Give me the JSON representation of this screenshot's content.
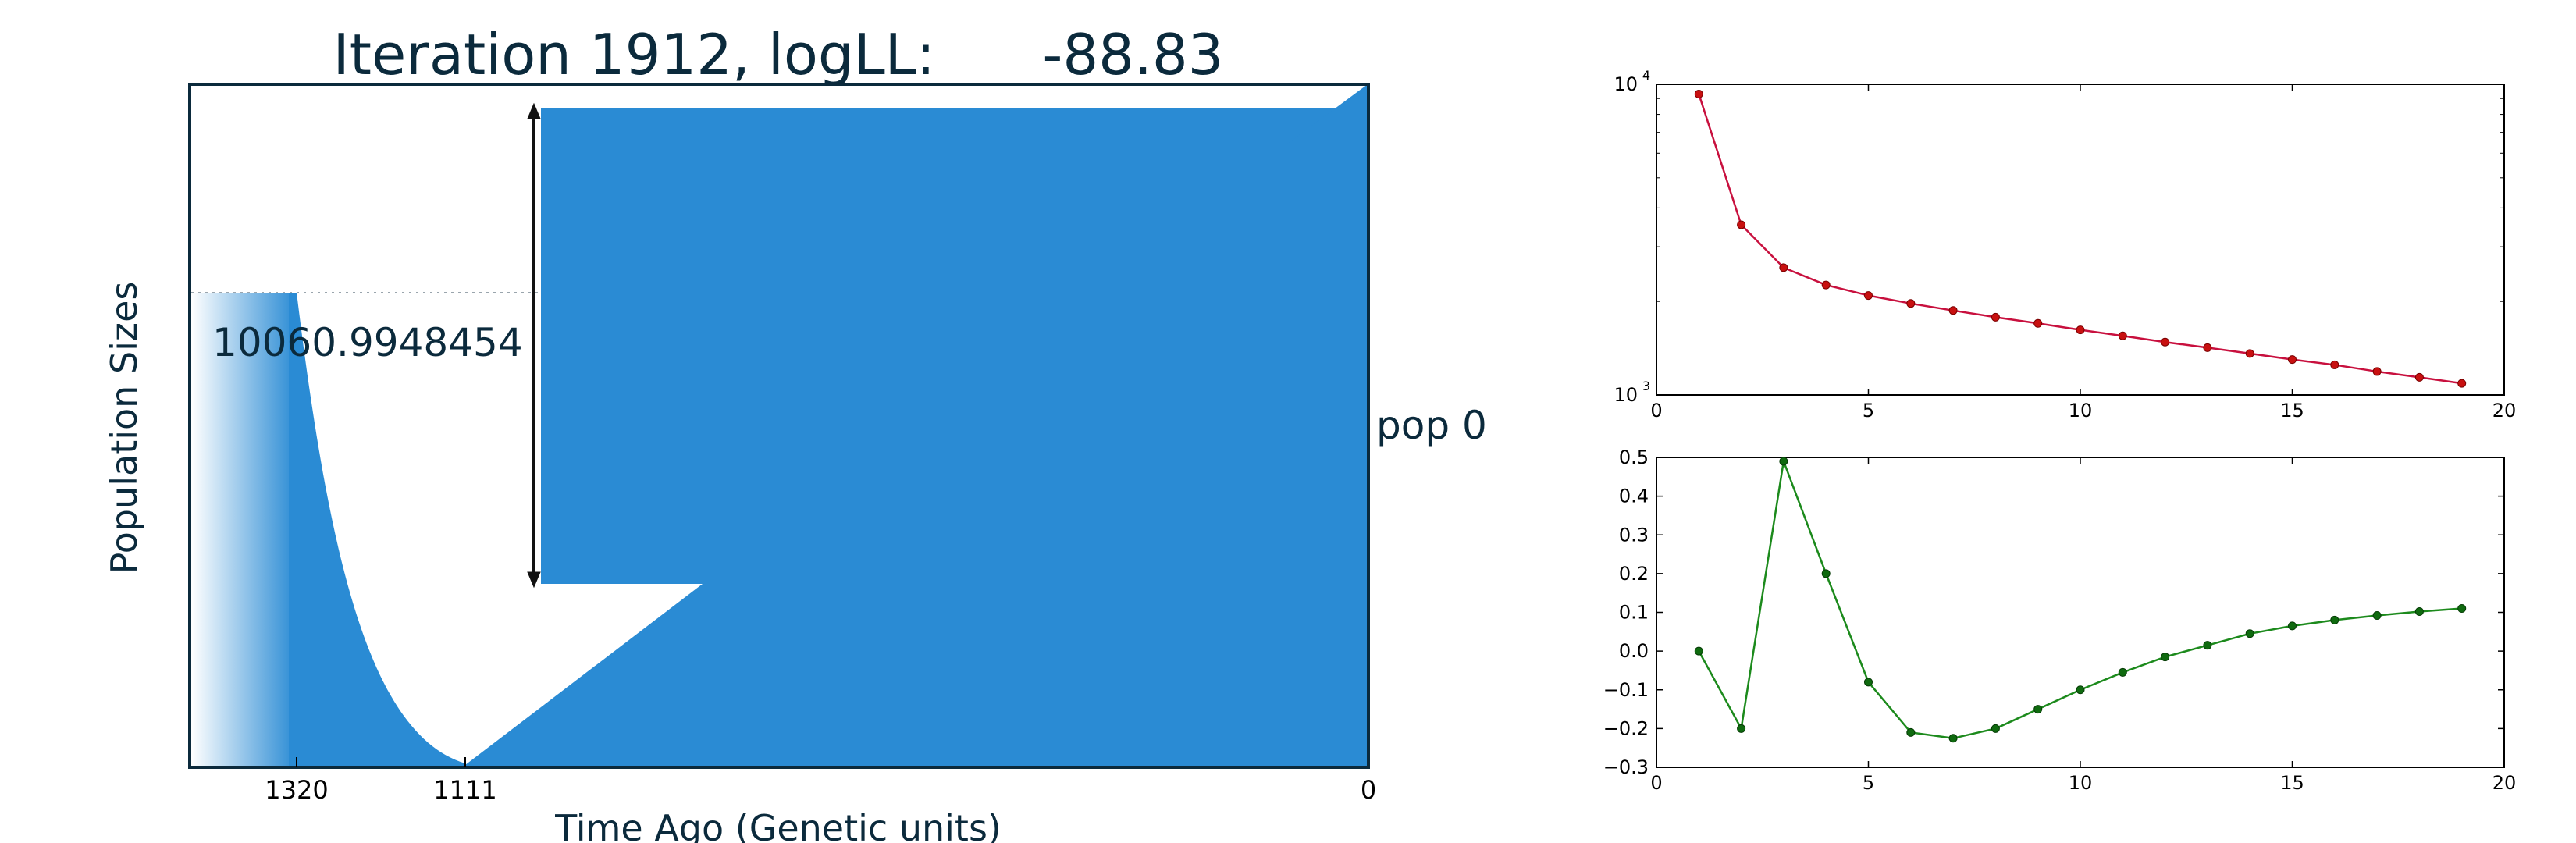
{
  "colors": {
    "pop": "#2a8bd4",
    "text": "#0b2a3c",
    "red_line": "#c8103e",
    "red_dot": "#c81010",
    "green": "#1c8a1c",
    "green_dot": "#0f6a0f"
  },
  "chart_data": [
    {
      "type": "area",
      "title": "Iteration 1912, logLL:      -88.83",
      "xlabel": "Time Ago (Genetic units)",
      "ylabel": "Population Sizes",
      "xticks": [
        "1320",
        "1111",
        "0"
      ],
      "x_reversed": true,
      "size_label": "10060.9948454",
      "pop_label": "pop 0"
    },
    {
      "type": "line",
      "yscale": "log",
      "xlim": [
        0,
        20
      ],
      "ylim": [
        1000,
        10000
      ],
      "xticks": [
        "0",
        "5",
        "10",
        "15",
        "20"
      ],
      "yticks": [
        {
          "base": "10",
          "exp": "3",
          "value": 1000
        },
        {
          "base": "10",
          "exp": "4",
          "value": 10000
        }
      ],
      "series": [
        {
          "x": [
            1,
            2,
            3,
            4,
            5,
            6,
            7,
            8,
            9,
            10,
            11,
            12,
            13,
            14,
            15,
            16,
            17,
            18,
            19
          ],
          "values": [
            9300,
            3530,
            2570,
            2260,
            2090,
            1970,
            1870,
            1780,
            1700,
            1620,
            1550,
            1480,
            1420,
            1360,
            1300,
            1250,
            1190,
            1140,
            1090
          ]
        }
      ]
    },
    {
      "type": "line",
      "xlim": [
        0,
        20
      ],
      "ylim": [
        -0.3,
        0.5
      ],
      "xticks": [
        "0",
        "5",
        "10",
        "15",
        "20"
      ],
      "yticks": [
        "−0.3",
        "−0.2",
        "−0.1",
        "0.0",
        "0.1",
        "0.2",
        "0.3",
        "0.4",
        "0.5"
      ],
      "series": [
        {
          "x": [
            1,
            2,
            3,
            4,
            5,
            6,
            7,
            8,
            9,
            10,
            11,
            12,
            13,
            14,
            15,
            16,
            17,
            18,
            19
          ],
          "values": [
            0.0,
            -0.2,
            0.49,
            0.2,
            -0.08,
            -0.21,
            -0.225,
            -0.2,
            -0.15,
            -0.1,
            -0.055,
            -0.015,
            0.015,
            0.045,
            0.065,
            0.08,
            0.092,
            0.102,
            0.11
          ]
        }
      ]
    }
  ]
}
